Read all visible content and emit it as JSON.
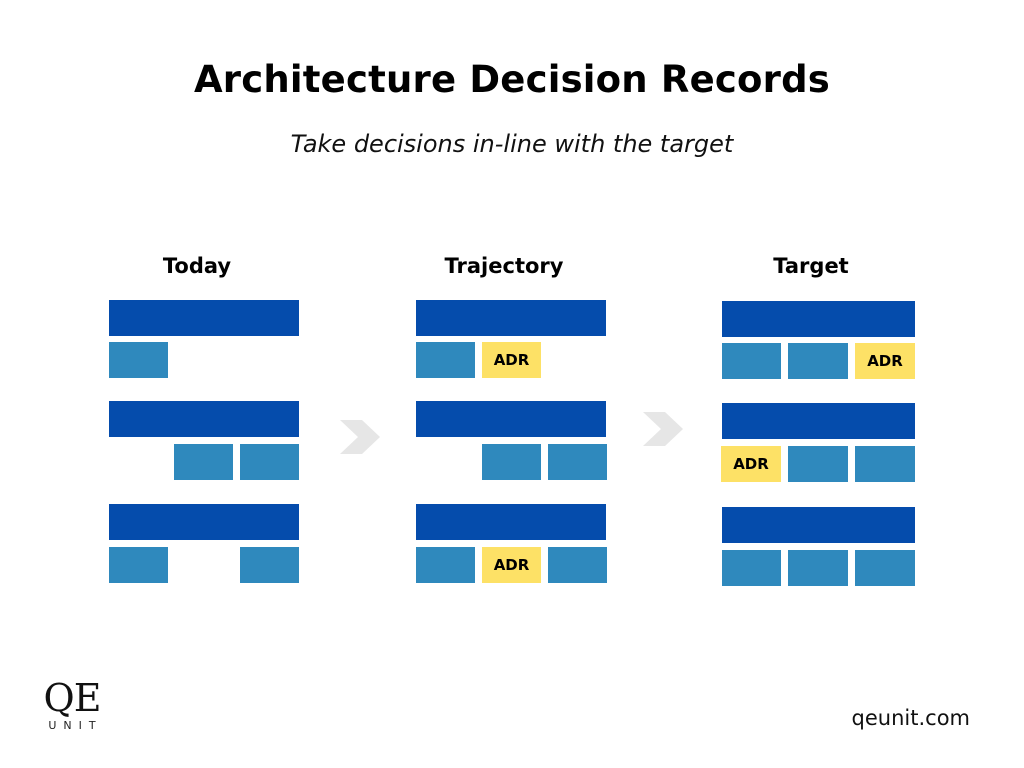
{
  "title": "Architecture Decision Records",
  "subtitle": "Take decisions in-line with the target",
  "columns": {
    "today": {
      "label": "Today"
    },
    "trajectory": {
      "label": "Trajectory"
    },
    "target": {
      "label": "Target"
    }
  },
  "adr_label": "ADR",
  "arrow_icon": "chevron-right-icon",
  "logo": {
    "main": "QE",
    "sub": "UNIT"
  },
  "footer_url": "qeunit.com",
  "colors": {
    "bar": "#054cac",
    "block": "#2f89bd",
    "adr": "#fde166",
    "arrow": "#e6e6e6"
  }
}
